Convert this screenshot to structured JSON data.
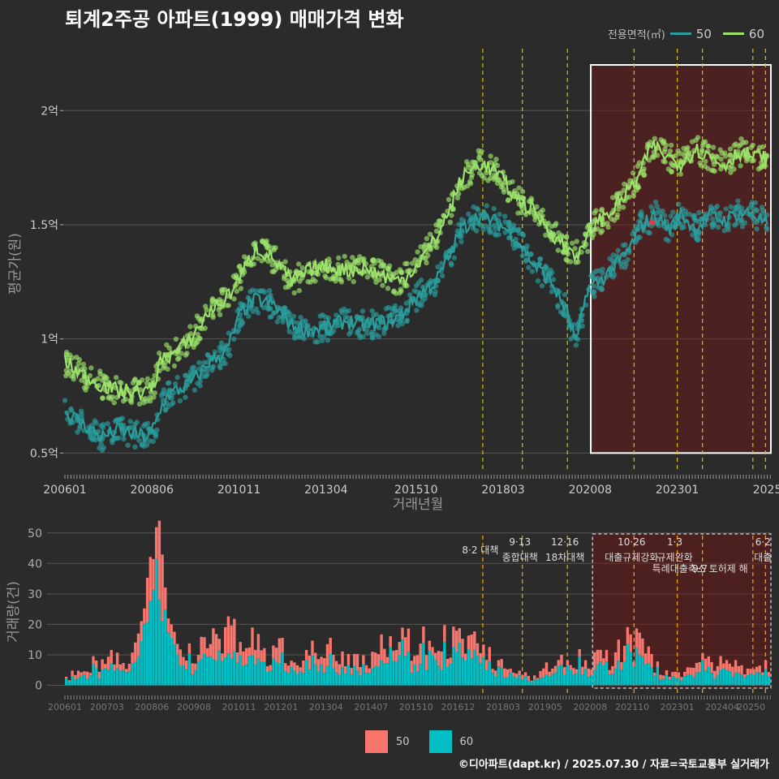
{
  "title": "퇴계2주공 아파트(1999) 매매가격 변화",
  "legend": {
    "title": "전용면적(㎡)",
    "items": [
      {
        "label": "50",
        "color": "#2a9d9d"
      },
      {
        "label": "60",
        "color": "#9be36a"
      }
    ]
  },
  "bar_legend": [
    {
      "label": "50",
      "color": "#f8766d"
    },
    {
      "label": "60",
      "color": "#00bfc4"
    }
  ],
  "footer": "©디아파트(dapt.kr) / 2025.07.30 / 자료=국토교통부 실거래가",
  "chart_data": [
    {
      "type": "line",
      "ylabel": "평균가(원)",
      "xlabel": "거래년월",
      "x_ticks": [
        "200601",
        "200806",
        "201011",
        "201304",
        "201510",
        "201803",
        "202008",
        "202301",
        "2025"
      ],
      "y_ticks": [
        {
          "value": 0.5,
          "label": "0.5억"
        },
        {
          "value": 1.0,
          "label": "1억"
        },
        {
          "value": 1.5,
          "label": "1.5억"
        },
        {
          "value": 2.0,
          "label": "2억"
        }
      ],
      "ylim": [
        0.43,
        2.2
      ],
      "x_range": [
        "2006-01",
        "2025-07"
      ],
      "series": [
        {
          "name": "50",
          "color": "#2a9d9d",
          "points": [
            [
              2006.0,
              0.68
            ],
            [
              2006.5,
              0.63
            ],
            [
              2007.0,
              0.57
            ],
            [
              2007.5,
              0.6
            ],
            [
              2008.0,
              0.58
            ],
            [
              2008.3,
              0.57
            ],
            [
              2008.5,
              0.62
            ],
            [
              2008.8,
              0.75
            ],
            [
              2009.2,
              0.78
            ],
            [
              2009.6,
              0.82
            ],
            [
              2010.0,
              0.9
            ],
            [
              2010.5,
              0.95
            ],
            [
              2010.9,
              1.12
            ],
            [
              2011.3,
              1.17
            ],
            [
              2011.8,
              1.15
            ],
            [
              2012.3,
              1.06
            ],
            [
              2012.8,
              1.04
            ],
            [
              2013.3,
              1.05
            ],
            [
              2013.8,
              1.08
            ],
            [
              2014.3,
              1.06
            ],
            [
              2014.8,
              1.07
            ],
            [
              2015.3,
              1.1
            ],
            [
              2015.8,
              1.19
            ],
            [
              2016.3,
              1.25
            ],
            [
              2016.7,
              1.37
            ],
            [
              2017.0,
              1.48
            ],
            [
              2017.5,
              1.54
            ],
            [
              2018.0,
              1.51
            ],
            [
              2018.5,
              1.45
            ],
            [
              2019.0,
              1.33
            ],
            [
              2019.5,
              1.25
            ],
            [
              2019.9,
              1.13
            ],
            [
              2020.2,
              0.98
            ],
            [
              2020.5,
              1.22
            ],
            [
              2020.9,
              1.26
            ],
            [
              2021.3,
              1.32
            ],
            [
              2021.7,
              1.4
            ],
            [
              2022.0,
              1.5
            ],
            [
              2022.4,
              1.54
            ],
            [
              2022.8,
              1.48
            ],
            [
              2023.1,
              1.55
            ],
            [
              2023.5,
              1.48
            ],
            [
              2023.9,
              1.54
            ],
            [
              2024.3,
              1.52
            ],
            [
              2024.7,
              1.55
            ],
            [
              2025.1,
              1.55
            ],
            [
              2025.5,
              1.5
            ]
          ]
        },
        {
          "name": "60",
          "color": "#9be36a",
          "points": [
            [
              2006.0,
              0.9
            ],
            [
              2006.5,
              0.84
            ],
            [
              2007.0,
              0.8
            ],
            [
              2007.5,
              0.77
            ],
            [
              2008.0,
              0.77
            ],
            [
              2008.4,
              0.77
            ],
            [
              2008.7,
              0.92
            ],
            [
              2009.0,
              0.93
            ],
            [
              2009.5,
              1.0
            ],
            [
              2010.0,
              1.12
            ],
            [
              2010.5,
              1.18
            ],
            [
              2010.9,
              1.28
            ],
            [
              2011.3,
              1.4
            ],
            [
              2011.8,
              1.35
            ],
            [
              2012.3,
              1.25
            ],
            [
              2012.8,
              1.3
            ],
            [
              2013.3,
              1.32
            ],
            [
              2013.8,
              1.3
            ],
            [
              2014.3,
              1.31
            ],
            [
              2014.8,
              1.28
            ],
            [
              2015.3,
              1.25
            ],
            [
              2015.8,
              1.33
            ],
            [
              2016.3,
              1.44
            ],
            [
              2016.7,
              1.57
            ],
            [
              2017.0,
              1.7
            ],
            [
              2017.5,
              1.77
            ],
            [
              2018.0,
              1.73
            ],
            [
              2018.5,
              1.62
            ],
            [
              2019.0,
              1.56
            ],
            [
              2019.5,
              1.47
            ],
            [
              2019.9,
              1.4
            ],
            [
              2020.3,
              1.37
            ],
            [
              2020.7,
              1.5
            ],
            [
              2021.1,
              1.55
            ],
            [
              2021.5,
              1.62
            ],
            [
              2021.9,
              1.7
            ],
            [
              2022.3,
              1.85
            ],
            [
              2022.7,
              1.8
            ],
            [
              2023.1,
              1.77
            ],
            [
              2023.5,
              1.83
            ],
            [
              2023.9,
              1.8
            ],
            [
              2024.3,
              1.76
            ],
            [
              2024.7,
              1.82
            ],
            [
              2025.1,
              1.8
            ],
            [
              2025.5,
              1.79
            ]
          ]
        }
      ]
    },
    {
      "type": "bar",
      "stacked": true,
      "ylabel": "거래량(건)",
      "x_ticks": [
        "200601",
        "200703",
        "200806",
        "200908",
        "201011",
        "201201",
        "201304",
        "201407",
        "201510",
        "201612",
        "201803",
        "201905",
        "202008",
        "202110",
        "202301",
        "202404",
        "20250"
      ],
      "y_ticks": [
        0,
        10,
        20,
        30,
        40,
        50
      ],
      "ylim": [
        -2,
        51
      ],
      "peaks": [
        [
          2006.0,
          3
        ],
        [
          2007.0,
          10
        ],
        [
          2007.8,
          9
        ],
        [
          2008.5,
          48
        ],
        [
          2009.3,
          12
        ],
        [
          2009.8,
          17
        ],
        [
          2010.5,
          22
        ],
        [
          2011.0,
          18
        ],
        [
          2011.5,
          14
        ],
        [
          2012.5,
          12
        ],
        [
          2013.5,
          14
        ],
        [
          2014.3,
          11
        ],
        [
          2014.9,
          18
        ],
        [
          2015.5,
          17
        ],
        [
          2016.0,
          17
        ],
        [
          2016.6,
          19
        ],
        [
          2017.5,
          15
        ],
        [
          2018.3,
          5
        ],
        [
          2019.0,
          3
        ],
        [
          2019.6,
          9
        ],
        [
          2020.2,
          10
        ],
        [
          2021.2,
          11
        ],
        [
          2021.6,
          18
        ],
        [
          2022.1,
          13
        ],
        [
          2022.5,
          6
        ],
        [
          2023.0,
          5
        ],
        [
          2023.6,
          9
        ],
        [
          2024.2,
          8
        ],
        [
          2024.8,
          7
        ],
        [
          2025.2,
          9
        ]
      ],
      "series": [
        {
          "name": "50",
          "color": "#f8766d"
        },
        {
          "name": "60",
          "color": "#00bfc4"
        }
      ]
    }
  ],
  "policy_events": [
    {
      "date": 2017.6,
      "date_label": "",
      "label": "8·2 대책",
      "tier": 1
    },
    {
      "date": 2018.7,
      "date_label": "9·13",
      "label": "종합대책",
      "tier": 0
    },
    {
      "date": 2019.95,
      "date_label": "12·16",
      "label": "18차대책",
      "tier": 0
    },
    {
      "date": 2021.8,
      "date_label": "10·26",
      "label": "대출규제강화",
      "tier": 0
    },
    {
      "date": 2023.0,
      "date_label": "1·3",
      "label": "규제완화",
      "tier": 0
    },
    {
      "date": 2023.7,
      "date_label": "9·7",
      "label": "특례대출축소 토허제 해",
      "tier": 2
    },
    {
      "date": 2025.1,
      "date_label": "",
      "label": "",
      "tier": 0
    },
    {
      "date": 2025.45,
      "date_label": "6·2",
      "label": "대출",
      "tier": 0
    }
  ],
  "highlight_range": [
    2020.6,
    2025.6
  ]
}
